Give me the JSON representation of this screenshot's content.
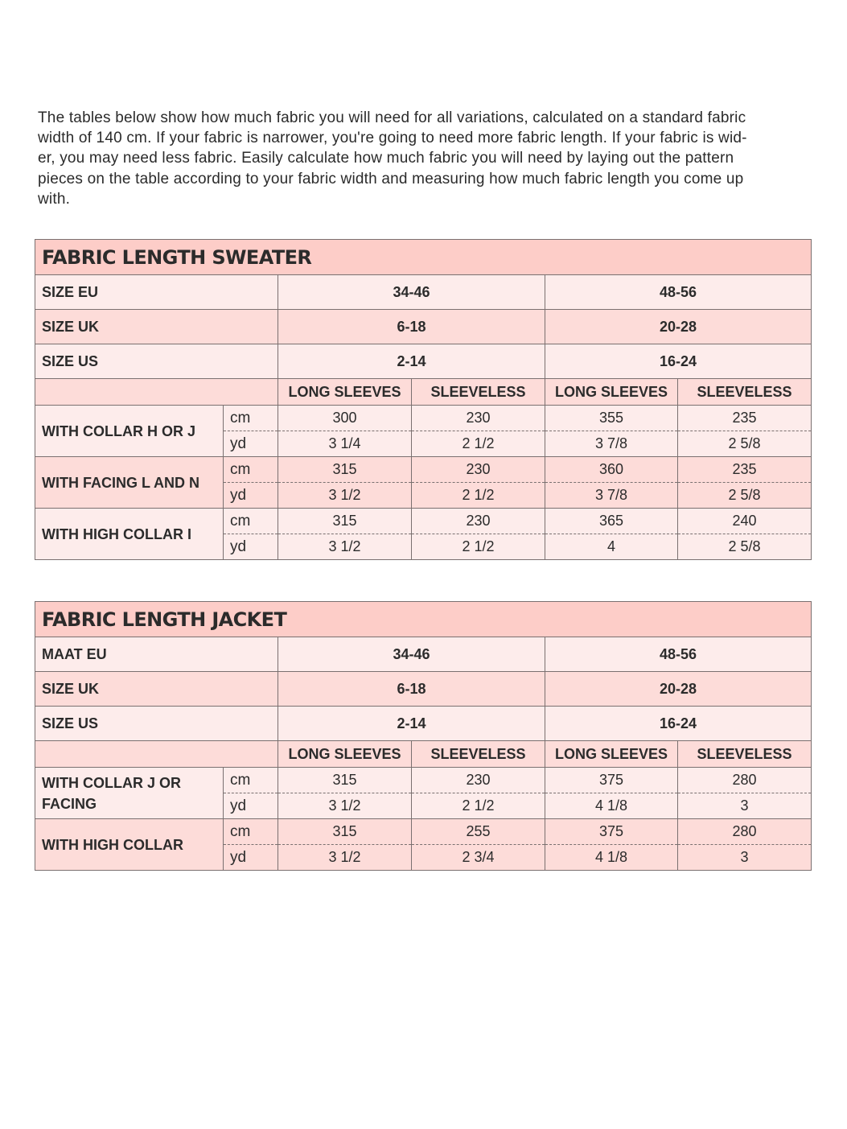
{
  "intro": [
    "The tables below show how much fabric you will need for all variations, calculated on a standard fabric",
    "width of 140 cm. If your fabric is narrower, you're going to need more fabric length. If your fabric is wid-",
    "er, you may need less fabric. Easily calculate how much fabric you will need by laying out the pattern",
    "pieces on the table according to your fabric width and measuring how much fabric length you come up",
    "with."
  ],
  "colors": {
    "title_bg": "#fdcdc8",
    "row_light": "#fdeceb",
    "row_medium": "#fddcd9",
    "text": "#2b2b2b"
  },
  "tables": [
    {
      "title": "FABRIC LENGTH SWEATER",
      "sizes": [
        {
          "label": "SIZE EU",
          "values": [
            "34-46",
            "48-56"
          ]
        },
        {
          "label": "SIZE UK",
          "values": [
            "6-18",
            "20-28"
          ]
        },
        {
          "label": "SIZE US",
          "values": [
            "2-14",
            "16-24"
          ]
        }
      ],
      "columns": [
        "LONG SLEEVES",
        "SLEEVELESS",
        "LONG SLEEVES",
        "SLEEVELESS"
      ],
      "groups": [
        {
          "label": "WITH COLLAR H OR J",
          "cm": [
            "300",
            "230",
            "355",
            "235"
          ],
          "yd": [
            "3 1/4",
            "2 1/2",
            "3 7/8",
            "2 5/8"
          ]
        },
        {
          "label": "WITH FACING L AND N",
          "cm": [
            "315",
            "230",
            "360",
            "235"
          ],
          "yd": [
            "3 1/2",
            "2 1/2",
            "3 7/8",
            "2 5/8"
          ]
        },
        {
          "label": "WITH HIGH COLLAR I",
          "cm": [
            "315",
            "230",
            "365",
            "240"
          ],
          "yd": [
            "3 1/2",
            "2 1/2",
            "4",
            "2 5/8"
          ]
        }
      ],
      "unit_cm": "cm",
      "unit_yd": "yd"
    },
    {
      "title": "FABRIC LENGTH JACKET",
      "sizes": [
        {
          "label": "MAAT EU",
          "values": [
            "34-46",
            "48-56"
          ]
        },
        {
          "label": "SIZE UK",
          "values": [
            "6-18",
            "20-28"
          ]
        },
        {
          "label": "SIZE US",
          "values": [
            "2-14",
            "16-24"
          ]
        }
      ],
      "columns": [
        "LONG SLEEVES",
        "SLEEVELESS",
        "LONG SLEEVES",
        "SLEEVELESS"
      ],
      "groups": [
        {
          "label": "WITH COLLAR J OR FACING",
          "cm": [
            "315",
            "230",
            "375",
            "280"
          ],
          "yd": [
            "3 1/2",
            "2 1/2",
            "4 1/8",
            "3"
          ]
        },
        {
          "label": "WITH HIGH COLLAR",
          "cm": [
            "315",
            "255",
            "375",
            "280"
          ],
          "yd": [
            "3 1/2",
            "2 3/4",
            "4 1/8",
            "3"
          ]
        }
      ],
      "unit_cm": "cm",
      "unit_yd": "yd"
    }
  ]
}
